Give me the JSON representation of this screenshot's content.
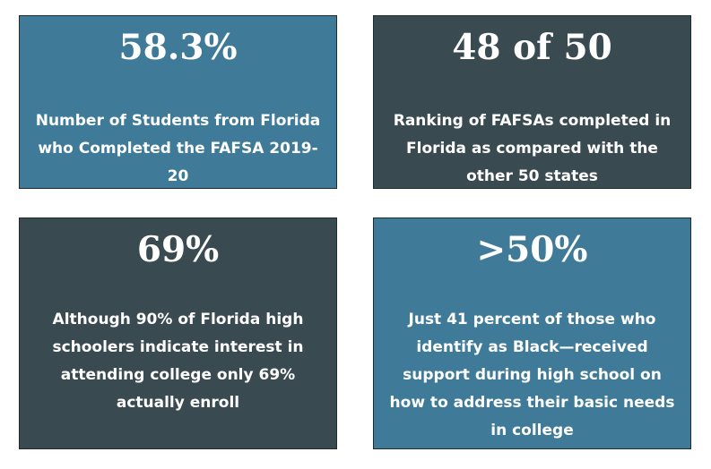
{
  "stats": [
    {
      "value": "58.3%",
      "description": "Number of Students from Florida who Completed the FAFSA 2019-20",
      "color": "#3f7b98"
    },
    {
      "value": "48 of 50",
      "description": "Ranking of FAFSAs completed in Florida as compared with the other 50 states",
      "color": "#3a4a51"
    },
    {
      "value": "69%",
      "description": "Although 90% of Florida high schoolers indicate interest in attending college only 69% actually enroll",
      "color": "#3a4a51"
    },
    {
      "value": ">50%",
      "description": "Just 41 percent of those who identify as Black—received support during high school on how to address their basic needs in college",
      "color": "#3f7b98"
    }
  ]
}
